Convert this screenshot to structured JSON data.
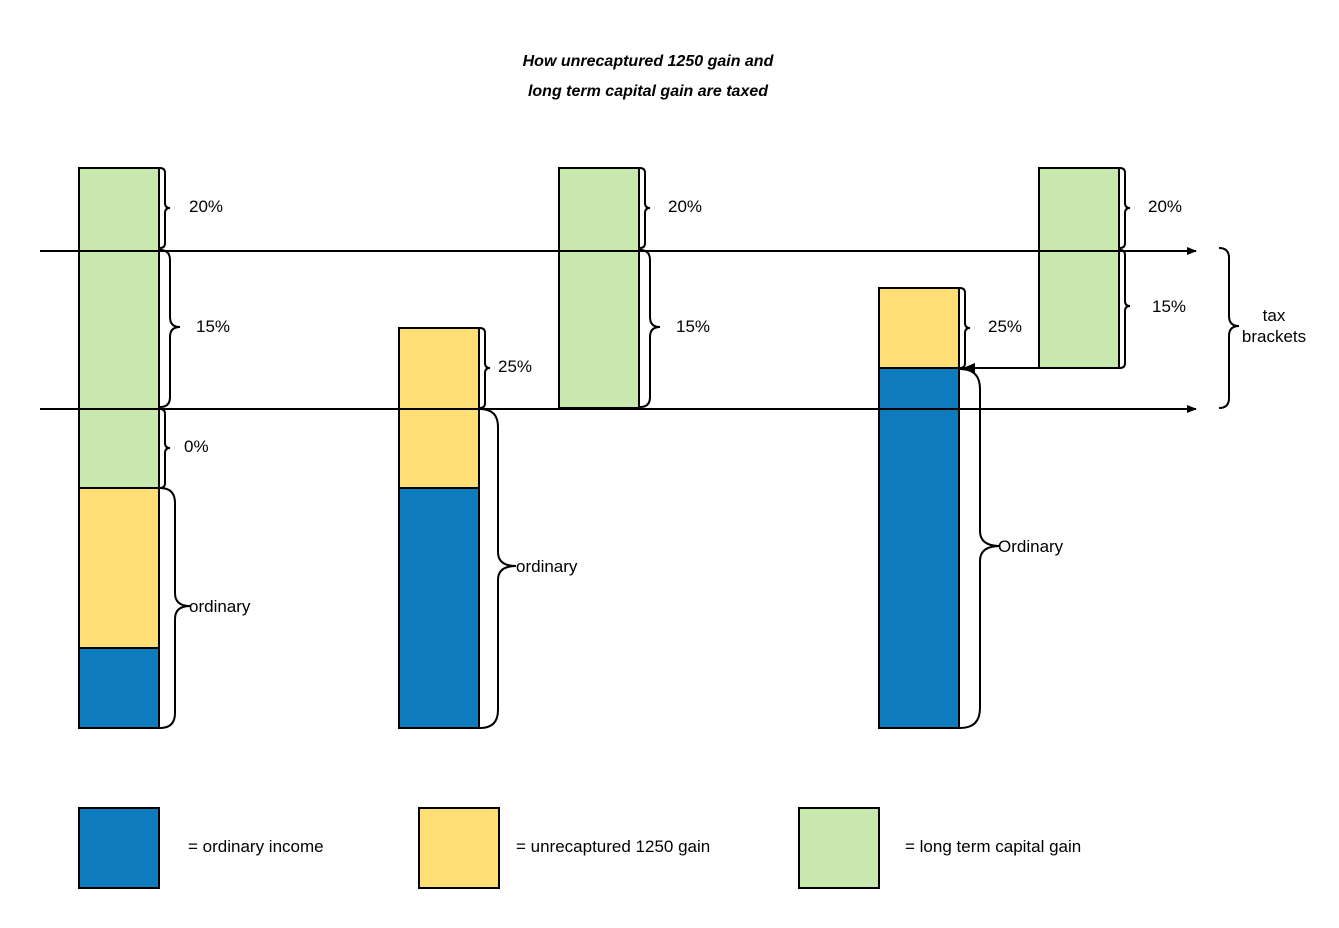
{
  "title": {
    "line1": "How unrecaptured 1250 gain and",
    "line2": "long term capital gain are taxed"
  },
  "colors": {
    "ordinary_income": "#0e7bbd",
    "unrecaptured_1250": "#ffdf75",
    "long_term_capital_gain": "#c8e8af"
  },
  "columns": [
    {
      "segments": [
        "ordinary_income",
        "unrecaptured_1250",
        "long_term_capital_gain"
      ],
      "labels": {
        "rate_20": "20%",
        "rate_15": "15%",
        "rate_0": "0%",
        "ordinary": "ordinary"
      }
    },
    {
      "segments": [
        "ordinary_income",
        "unrecaptured_1250",
        "long_term_capital_gain"
      ],
      "labels": {
        "rate_25": "25%",
        "ordinary": "ordinary",
        "rate_20": "20%",
        "rate_15": "15%"
      }
    },
    {
      "segments": [
        "ordinary_income",
        "unrecaptured_1250",
        "long_term_capital_gain"
      ],
      "labels": {
        "rate_25": "25%",
        "ordinary": "Ordinary",
        "rate_20": "20%",
        "rate_15": "15%"
      }
    }
  ],
  "tax_brackets_label": {
    "line1": "tax",
    "line2": "brackets"
  },
  "legend": [
    {
      "key": "ordinary_income",
      "text": "= ordinary income"
    },
    {
      "key": "unrecaptured_1250",
      "text": "= unrecaptured 1250 gain"
    },
    {
      "key": "long_term_capital_gain",
      "text": "= long term capital gain"
    }
  ]
}
